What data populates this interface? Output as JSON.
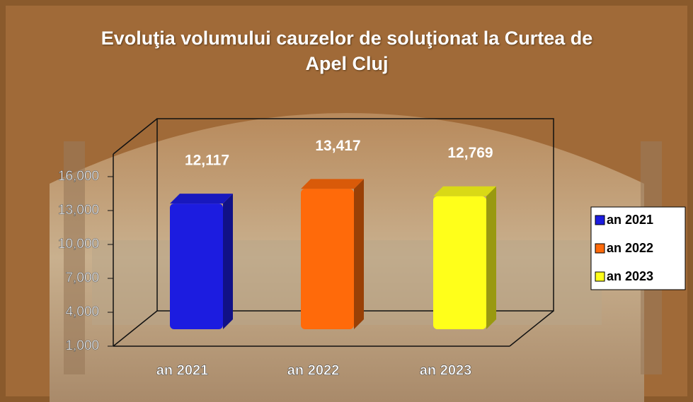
{
  "chart_data": {
    "type": "bar3d",
    "title": "Evoluţia volumului cauzelor de soluţionat la Curtea de Apel Cluj",
    "categories": [
      "an 2021",
      "an 2022",
      "an 2023"
    ],
    "series": [
      {
        "name": "an 2021",
        "color": "#1c1ce0"
      },
      {
        "name": "an 2022",
        "color": "#ff6a0a"
      },
      {
        "name": "an 2023",
        "color": "#ffff1a"
      }
    ],
    "values": [
      12117,
      13417,
      12769
    ],
    "value_labels": [
      "12,117",
      "13,417",
      "12,769"
    ],
    "ylim": [
      1000,
      18000
    ],
    "yticks": [
      {
        "value": 1000,
        "label": "1,000"
      },
      {
        "value": 4000,
        "label": "4,000"
      },
      {
        "value": 7000,
        "label": "7,000"
      },
      {
        "value": 10000,
        "label": "10,000"
      },
      {
        "value": 13000,
        "label": "13,000"
      },
      {
        "value": 16000,
        "label": "16,000"
      }
    ],
    "legend": "right"
  }
}
